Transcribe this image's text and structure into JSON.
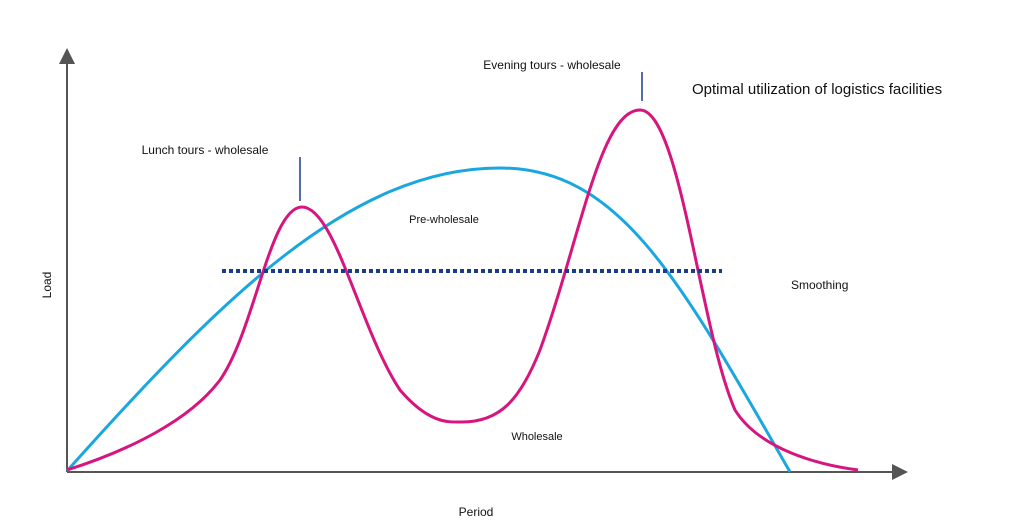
{
  "title": "Optimal utilization of logistics facilities",
  "axes": {
    "y_label": "Load",
    "x_label": "Period"
  },
  "annotations": {
    "evening_peak": "Evening tours - wholesale",
    "lunch_peak": "Lunch tours - wholesale",
    "pre_wholesale": "Pre-wholesale",
    "smoothing": "Smoothing",
    "wholesale": "Wholesale"
  }
}
